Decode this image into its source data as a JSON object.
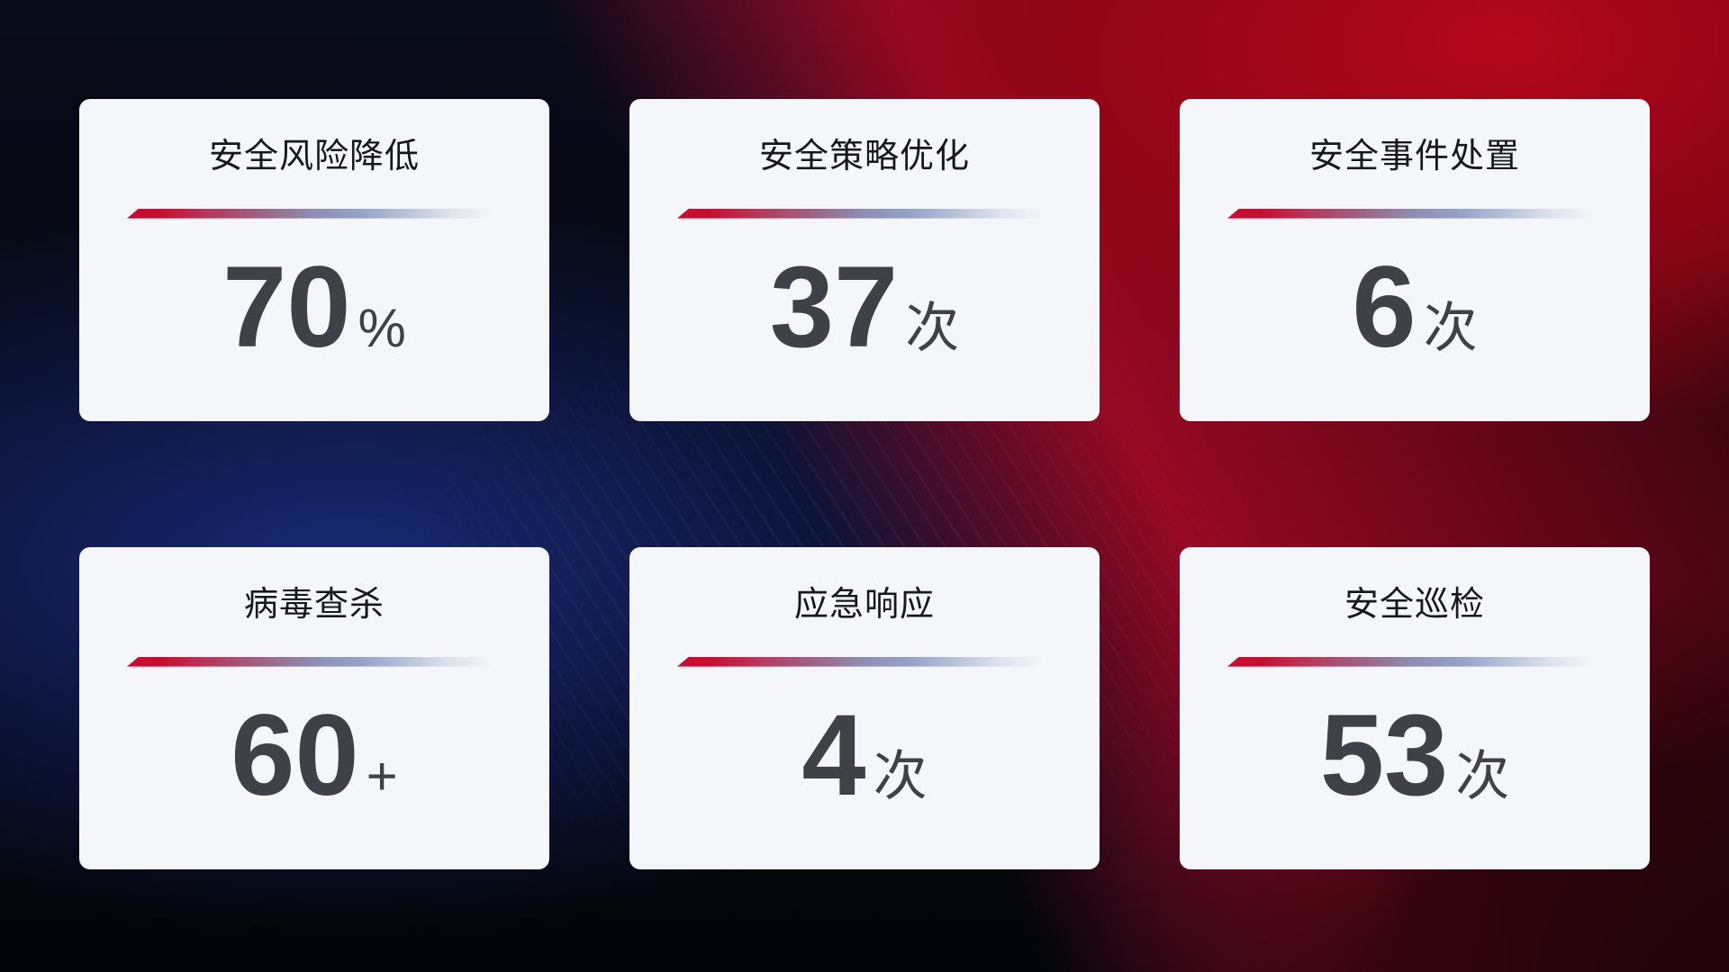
{
  "theme": {
    "card_bg": "#f4f6f9",
    "title_color": "#15181d",
    "value_color": "#3e4248",
    "accent_red": "#c60e33",
    "accent_blue_gray": "#93a2c6",
    "bg_navy": "#131f55",
    "bg_red": "#a10720"
  },
  "cards": [
    {
      "title": "安全风险降低",
      "value": "70",
      "unit": "%"
    },
    {
      "title": "安全策略优化",
      "value": "37",
      "unit": "次"
    },
    {
      "title": "安全事件处置",
      "value": "6",
      "unit": "次"
    },
    {
      "title": "病毒查杀",
      "value": "60",
      "unit": "+"
    },
    {
      "title": "应急响应",
      "value": "4",
      "unit": "次"
    },
    {
      "title": "安全巡检",
      "value": "53",
      "unit": "次"
    }
  ]
}
